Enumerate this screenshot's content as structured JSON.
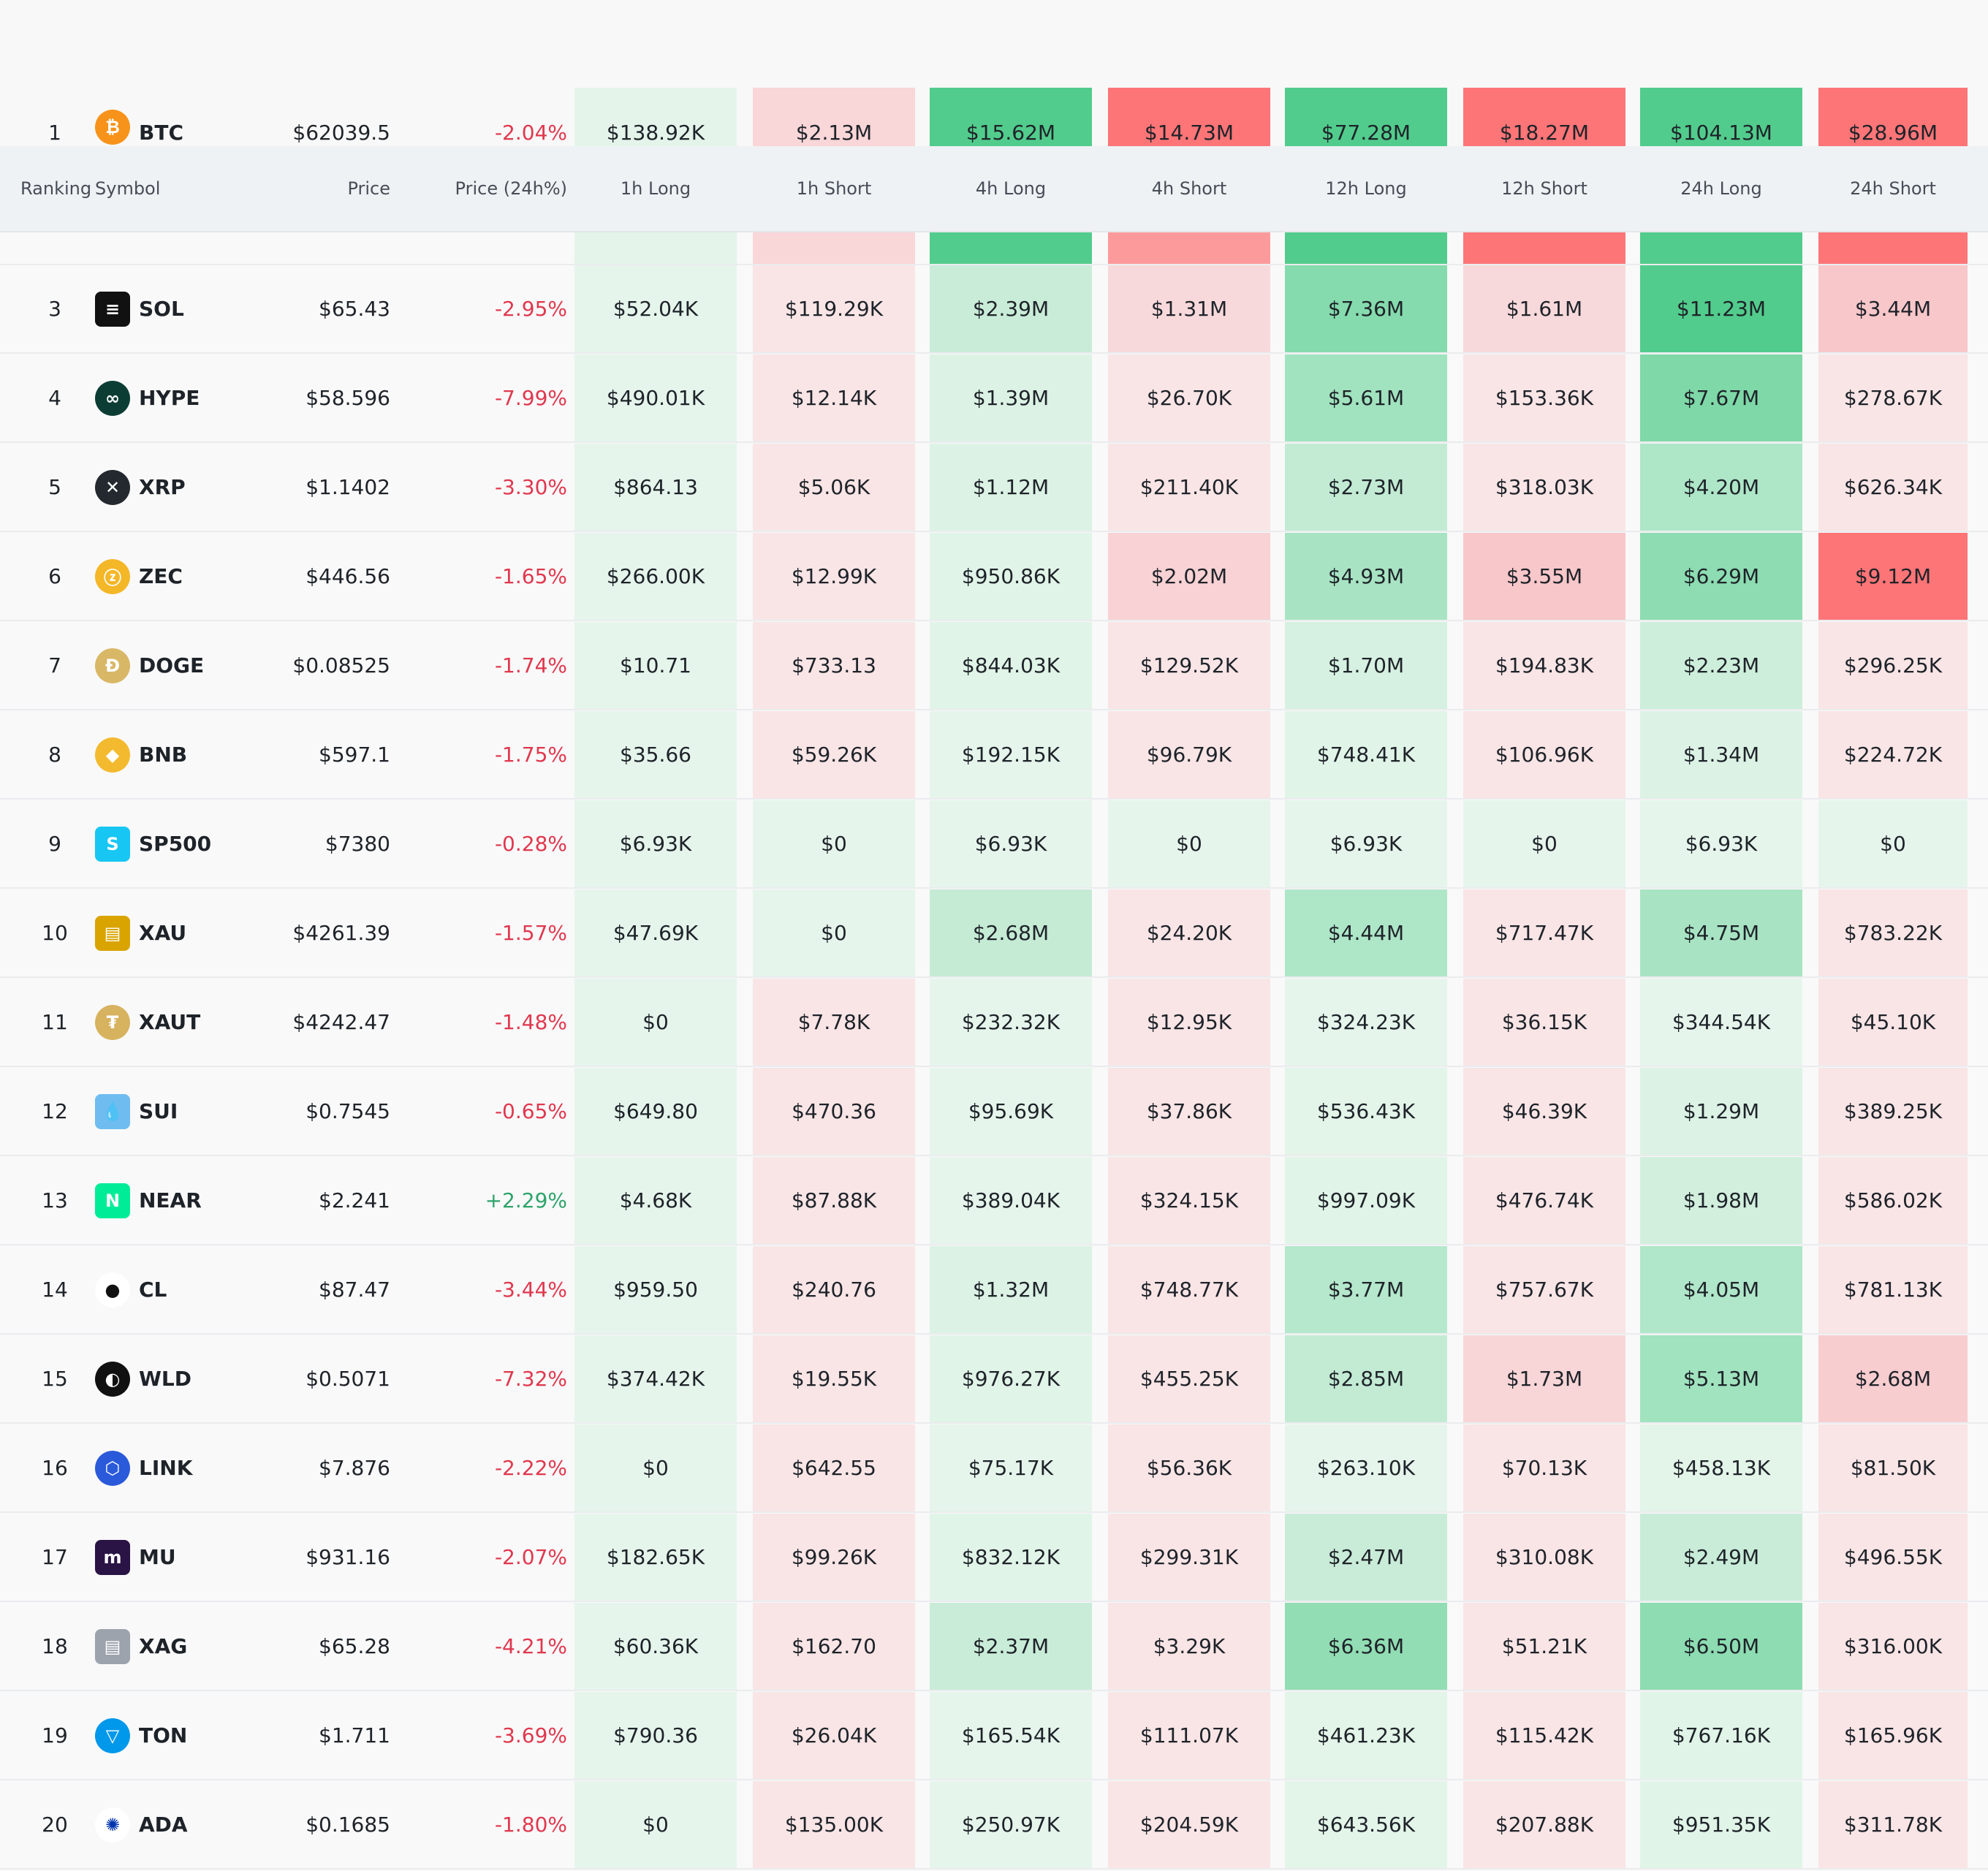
{
  "headers": {
    "ranking": "Ranking",
    "symbol": "Symbol",
    "price": "Price",
    "price_change": "Price (24h%)",
    "cols": [
      "1h Long",
      "1h Short",
      "4h Long",
      "4h Short",
      "12h Long",
      "12h Short",
      "24h Long",
      "24h Short"
    ]
  },
  "colors": {
    "negative": "#e0384e",
    "positive": "#2ea36a",
    "header_bg": "#eff2f5"
  },
  "btc": {
    "rank": "1",
    "symbol": "BTC",
    "icon": "bitcoin-icon",
    "price": "$62039.5",
    "change": "-2.04%",
    "v": [
      "$138.92K",
      "$2.13M",
      "$15.62M",
      "$14.73M",
      "$77.28M",
      "$18.27M",
      "$104.13M",
      "$28.96M"
    ],
    "bg": [
      "#e4f4ea",
      "#f9d6d8",
      "#52cc8c",
      "#fd7577",
      "#52cc8c",
      "#fd7577",
      "#52cc8c",
      "#fd7577"
    ]
  },
  "eth_strip_bg": [
    "#e4f4ea",
    "#f9d6d8",
    "#52cc8c",
    "#fc9a9b",
    "#52cc8c",
    "#fd7577",
    "#52cc8c",
    "#fd7577"
  ],
  "rows": [
    {
      "rank": "3",
      "symbol": "SOL",
      "icon": "solana-icon",
      "price": "$65.43",
      "change": "-2.95%",
      "v": [
        "$52.04K",
        "$119.29K",
        "$2.39M",
        "$1.31M",
        "$7.36M",
        "$1.61M",
        "$11.23M",
        "$3.44M"
      ],
      "bg": [
        "#e6f5ec",
        "#f9e5e6",
        "#c9ecd8",
        "#f8d9db",
        "#85dbad",
        "#f8d9db",
        "#52cc8c",
        "#f8c7ca"
      ]
    },
    {
      "rank": "4",
      "symbol": "HYPE",
      "icon": "hyperliquid-icon",
      "price": "$58.596",
      "change": "-7.99%",
      "v": [
        "$490.01K",
        "$12.14K",
        "$1.39M",
        "$26.70K",
        "$5.61M",
        "$153.36K",
        "$7.67M",
        "$278.67K"
      ],
      "bg": [
        "#e6f5ec",
        "#f9e5e6",
        "#dcf2e5",
        "#f9e5e6",
        "#a1e3bf",
        "#f9e5e6",
        "#7ed8a7",
        "#f9e5e6"
      ]
    },
    {
      "rank": "5",
      "symbol": "XRP",
      "icon": "xrp-icon",
      "price": "$1.1402",
      "change": "-3.30%",
      "v": [
        "$864.13",
        "$5.06K",
        "$1.12M",
        "$211.40K",
        "$2.73M",
        "$318.03K",
        "$4.20M",
        "$626.34K"
      ],
      "bg": [
        "#e6f5ec",
        "#f9e5e6",
        "#dcf2e5",
        "#f9e5e6",
        "#c3ebd4",
        "#f9e5e6",
        "#aee6c8",
        "#f9e5e6"
      ]
    },
    {
      "rank": "6",
      "symbol": "ZEC",
      "icon": "zcash-icon",
      "price": "$446.56",
      "change": "-1.65%",
      "v": [
        "$266.00K",
        "$12.99K",
        "$950.86K",
        "$2.02M",
        "$4.93M",
        "$3.55M",
        "$6.29M",
        "$9.12M"
      ],
      "bg": [
        "#e6f5ec",
        "#f9e5e6",
        "#e1f4e8",
        "#f8d2d4",
        "#a8e4c3",
        "#f8c7ca",
        "#8ddcb2",
        "#fd7577"
      ]
    },
    {
      "rank": "7",
      "symbol": "DOGE",
      "icon": "dogecoin-icon",
      "price": "$0.08525",
      "change": "-1.74%",
      "v": [
        "$10.71",
        "$733.13",
        "$844.03K",
        "$129.52K",
        "$1.70M",
        "$194.83K",
        "$2.23M",
        "$296.25K"
      ],
      "bg": [
        "#e6f5ec",
        "#f9e5e6",
        "#e1f4e8",
        "#f9e5e6",
        "#d6f1e1",
        "#f9e5e6",
        "#cdeedb",
        "#f9e5e6"
      ]
    },
    {
      "rank": "8",
      "symbol": "BNB",
      "icon": "bnb-icon",
      "price": "$597.1",
      "change": "-1.75%",
      "v": [
        "$35.66",
        "$59.26K",
        "$192.15K",
        "$96.79K",
        "$748.41K",
        "$106.96K",
        "$1.34M",
        "$224.72K"
      ],
      "bg": [
        "#e6f5ec",
        "#f9e5e6",
        "#e6f5ec",
        "#f9e5e6",
        "#e1f4e8",
        "#f9e5e6",
        "#dcf2e5",
        "#f9e5e6"
      ]
    },
    {
      "rank": "9",
      "symbol": "SP500",
      "icon": "sp500-icon",
      "price": "$7380",
      "change": "-0.28%",
      "v": [
        "$6.93K",
        "$0",
        "$6.93K",
        "$0",
        "$6.93K",
        "$0",
        "$6.93K",
        "$0"
      ],
      "bg": [
        "#e6f5ec",
        "#e6f5ec",
        "#e6f5ec",
        "#e6f5ec",
        "#e6f5ec",
        "#e6f5ec",
        "#e6f5ec",
        "#e6f5ec"
      ]
    },
    {
      "rank": "10",
      "symbol": "XAU",
      "icon": "gold-icon",
      "price": "$4261.39",
      "change": "-1.57%",
      "v": [
        "$47.69K",
        "$0",
        "$2.68M",
        "$24.20K",
        "$4.44M",
        "$717.47K",
        "$4.75M",
        "$783.22K"
      ],
      "bg": [
        "#e6f5ec",
        "#e6f5ec",
        "#c5ebd5",
        "#f9e5e6",
        "#aee6c8",
        "#f9e5e6",
        "#a8e4c3",
        "#f9e5e6"
      ]
    },
    {
      "rank": "11",
      "symbol": "XAUT",
      "icon": "tether-gold-icon",
      "price": "$4242.47",
      "change": "-1.48%",
      "v": [
        "$0",
        "$7.78K",
        "$232.32K",
        "$12.95K",
        "$324.23K",
        "$36.15K",
        "$344.54K",
        "$45.10K"
      ],
      "bg": [
        "#e6f5ec",
        "#f9e5e6",
        "#e6f5ec",
        "#f9e5e6",
        "#e6f5ec",
        "#f9e5e6",
        "#e6f5ec",
        "#f9e5e6"
      ]
    },
    {
      "rank": "12",
      "symbol": "SUI",
      "icon": "sui-icon",
      "price": "$0.7545",
      "change": "-0.65%",
      "v": [
        "$649.80",
        "$470.36",
        "$95.69K",
        "$37.86K",
        "$536.43K",
        "$46.39K",
        "$1.29M",
        "$389.25K"
      ],
      "bg": [
        "#e6f5ec",
        "#f9e5e6",
        "#e6f5ec",
        "#f9e5e6",
        "#e3f4e9",
        "#f9e5e6",
        "#dcf2e5",
        "#f9e5e6"
      ]
    },
    {
      "rank": "13",
      "symbol": "NEAR",
      "icon": "near-icon",
      "price": "$2.241",
      "change": "+2.29%",
      "v": [
        "$4.68K",
        "$87.88K",
        "$389.04K",
        "$324.15K",
        "$997.09K",
        "$476.74K",
        "$1.98M",
        "$586.02K"
      ],
      "bg": [
        "#e6f5ec",
        "#f9e5e6",
        "#e6f5ec",
        "#f9e5e6",
        "#e1f4e8",
        "#f9e5e6",
        "#d2efde",
        "#f9e5e6"
      ]
    },
    {
      "rank": "14",
      "symbol": "CL",
      "icon": "crude-oil-icon",
      "price": "$87.47",
      "change": "-3.44%",
      "v": [
        "$959.50",
        "$240.76",
        "$1.32M",
        "$748.77K",
        "$3.77M",
        "$757.67K",
        "$4.05M",
        "$781.13K"
      ],
      "bg": [
        "#e6f5ec",
        "#f9e5e6",
        "#dcf2e5",
        "#f9e5e6",
        "#b5e8cc",
        "#f9e5e6",
        "#b0e6c9",
        "#f9e5e6"
      ]
    },
    {
      "rank": "15",
      "symbol": "WLD",
      "icon": "worldcoin-icon",
      "price": "$0.5071",
      "change": "-7.32%",
      "v": [
        "$374.42K",
        "$19.55K",
        "$976.27K",
        "$455.25K",
        "$2.85M",
        "$1.73M",
        "$5.13M",
        "$2.68M"
      ],
      "bg": [
        "#e6f5ec",
        "#f9e5e6",
        "#e1f4e8",
        "#f9e5e6",
        "#c3ebd4",
        "#f8d6d8",
        "#a1e3bf",
        "#f8cdd0"
      ]
    },
    {
      "rank": "16",
      "symbol": "LINK",
      "icon": "chainlink-icon",
      "price": "$7.876",
      "change": "-2.22%",
      "v": [
        "$0",
        "$642.55",
        "$75.17K",
        "$56.36K",
        "$263.10K",
        "$70.13K",
        "$458.13K",
        "$81.50K"
      ],
      "bg": [
        "#e6f5ec",
        "#f9e5e6",
        "#e6f5ec",
        "#f9e5e6",
        "#e6f5ec",
        "#f9e5e6",
        "#e3f4e9",
        "#f9e5e6"
      ]
    },
    {
      "rank": "17",
      "symbol": "MU",
      "icon": "micron-icon",
      "price": "$931.16",
      "change": "-2.07%",
      "v": [
        "$182.65K",
        "$99.26K",
        "$832.12K",
        "$299.31K",
        "$2.47M",
        "$310.08K",
        "$2.49M",
        "$496.55K"
      ],
      "bg": [
        "#e6f5ec",
        "#f9e5e6",
        "#e1f4e8",
        "#f9e5e6",
        "#c9ecd8",
        "#f9e5e6",
        "#c9ecd8",
        "#f9e5e6"
      ]
    },
    {
      "rank": "18",
      "symbol": "XAG",
      "icon": "silver-icon",
      "price": "$65.28",
      "change": "-4.21%",
      "v": [
        "$60.36K",
        "$162.70",
        "$2.37M",
        "$3.29K",
        "$6.36M",
        "$51.21K",
        "$6.50M",
        "$316.00K"
      ],
      "bg": [
        "#e6f5ec",
        "#f9e5e6",
        "#c9ecd8",
        "#f9e5e6",
        "#92ddb4",
        "#f9e5e6",
        "#8ddcb2",
        "#f9e5e6"
      ]
    },
    {
      "rank": "19",
      "symbol": "TON",
      "icon": "toncoin-icon",
      "price": "$1.711",
      "change": "-3.69%",
      "v": [
        "$790.36",
        "$26.04K",
        "$165.54K",
        "$111.07K",
        "$461.23K",
        "$115.42K",
        "$767.16K",
        "$165.96K"
      ],
      "bg": [
        "#e6f5ec",
        "#f9e5e6",
        "#e6f5ec",
        "#f9e5e6",
        "#e3f4e9",
        "#f9e5e6",
        "#e1f4e8",
        "#f9e5e6"
      ]
    },
    {
      "rank": "20",
      "symbol": "ADA",
      "icon": "cardano-icon",
      "price": "$0.1685",
      "change": "-1.80%",
      "v": [
        "$0",
        "$135.00K",
        "$250.97K",
        "$204.59K",
        "$643.56K",
        "$207.88K",
        "$951.35K",
        "$311.78K"
      ],
      "bg": [
        "#e6f5ec",
        "#f9e5e6",
        "#e6f5ec",
        "#f9e5e6",
        "#e3f4e9",
        "#f9e5e6",
        "#e1f4e8",
        "#f9e5e6"
      ]
    }
  ]
}
